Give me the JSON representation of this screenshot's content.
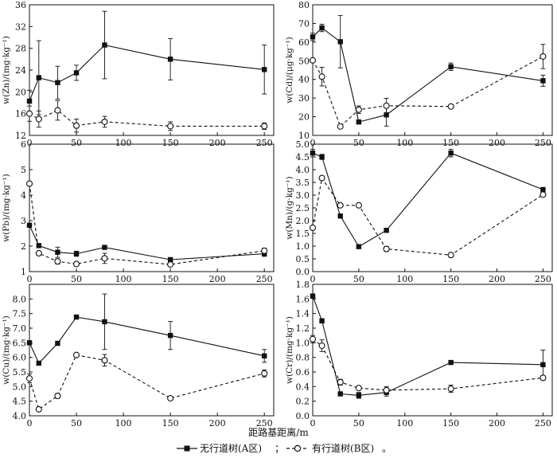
{
  "chart_data": [
    {
      "type": "line",
      "ylabel": "w(Zn)/(mg·kg⁻¹)",
      "ylim": [
        12,
        36
      ],
      "yticks": [
        12,
        16,
        20,
        24,
        28,
        32,
        36
      ],
      "xlim": [
        0,
        260
      ],
      "series": [
        {
          "name": "无行道树(A区)",
          "x": [
            0,
            10,
            30,
            50,
            80,
            150,
            250
          ],
          "values": [
            18.3,
            22.6,
            21.7,
            23.5,
            28.6,
            26.0,
            24.1
          ],
          "err": [
            2.0,
            6.8,
            3.0,
            1.4,
            6.2,
            3.8,
            4.5
          ]
        },
        {
          "name": "有行道树(B区)",
          "x": [
            0,
            10,
            30,
            50,
            80,
            150,
            250
          ],
          "values": [
            16.0,
            15.0,
            16.6,
            13.8,
            14.5,
            13.7,
            13.7
          ],
          "err": [
            1.4,
            1.5,
            1.8,
            1.2,
            1.0,
            0.8,
            0.6
          ]
        }
      ]
    },
    {
      "type": "line",
      "ylabel": "w(Cd)/(μg·kg⁻¹)",
      "ylim": [
        10,
        80
      ],
      "yticks": [
        10,
        20,
        30,
        40,
        50,
        60,
        70,
        80
      ],
      "xlim": [
        0,
        260
      ],
      "series": [
        {
          "name": "无行道树(A区)",
          "x": [
            0,
            10,
            30,
            50,
            80,
            150,
            250
          ],
          "values": [
            62.8,
            67.6,
            60.2,
            17.2,
            21.0,
            46.8,
            39.3
          ],
          "err": [
            2.0,
            2.0,
            14.0,
            0.8,
            6.0,
            2.0,
            3.0
          ]
        },
        {
          "name": "有行道树(B区)",
          "x": [
            0,
            10,
            30,
            50,
            80,
            150,
            250
          ],
          "values": [
            50.2,
            41.5,
            14.8,
            23.8,
            25.9,
            25.5,
            52.3
          ],
          "err": [
            1.0,
            5.0,
            0.8,
            2.0,
            4.0,
            1.0,
            6.5
          ]
        }
      ]
    },
    {
      "type": "line",
      "ylabel": "w(Pb)/(mg·kg⁻¹)",
      "ylim": [
        1,
        6
      ],
      "yticks": [
        1,
        2,
        3,
        4,
        5,
        6
      ],
      "xlim": [
        0,
        260
      ],
      "series": [
        {
          "name": "无行道树(A区)",
          "x": [
            0,
            10,
            30,
            50,
            80,
            150,
            250
          ],
          "values": [
            2.82,
            2.02,
            1.76,
            1.7,
            1.95,
            1.47,
            1.7
          ],
          "err": [
            0.05,
            0.05,
            0.2,
            0.1,
            0.05,
            0.05,
            0.1
          ]
        },
        {
          "name": "有行道树(B区)",
          "x": [
            0,
            10,
            30,
            50,
            80,
            150,
            250
          ],
          "values": [
            4.45,
            1.72,
            1.4,
            1.3,
            1.52,
            1.28,
            1.82
          ],
          "err": [
            0.05,
            0.05,
            0.1,
            0.05,
            0.2,
            0.05,
            0.1
          ]
        }
      ]
    },
    {
      "type": "line",
      "ylabel": "w(Mn)/(g·kg⁻¹)",
      "ylim": [
        0,
        5
      ],
      "yticks": [
        0,
        0.5,
        1.0,
        1.5,
        2.0,
        2.5,
        3.0,
        3.5,
        4.0,
        4.5,
        5.0
      ],
      "xlim": [
        0,
        260
      ],
      "series": [
        {
          "name": "无行道树(A区)",
          "x": [
            0,
            10,
            30,
            50,
            80,
            150,
            250
          ],
          "values": [
            4.65,
            4.5,
            2.18,
            0.98,
            1.62,
            4.65,
            3.22
          ],
          "err": [
            0.15,
            0.1,
            0.06,
            0.03,
            0.05,
            0.15,
            0.05
          ]
        },
        {
          "name": "有行道树(B区)",
          "x": [
            0,
            10,
            30,
            50,
            80,
            150,
            250
          ],
          "values": [
            1.72,
            3.67,
            2.6,
            2.6,
            0.89,
            0.65,
            3.02
          ],
          "err": [
            0.06,
            0.08,
            0.04,
            0.04,
            0.1,
            0.04,
            0.05
          ]
        }
      ]
    },
    {
      "type": "line",
      "ylabel": "w(Cu)/(mg·kg⁻¹)",
      "ylim": [
        4.0,
        8.5
      ],
      "yticks": [
        4.0,
        4.5,
        5.0,
        5.5,
        6.0,
        6.5,
        7.0,
        7.5,
        8.0
      ],
      "xlim": [
        0,
        260
      ],
      "series": [
        {
          "name": "无行道树(A区)",
          "x": [
            0,
            10,
            30,
            50,
            80,
            150,
            250
          ],
          "values": [
            6.5,
            5.8,
            6.48,
            7.38,
            7.22,
            6.75,
            6.05
          ],
          "err": [
            0.05,
            0.05,
            0.06,
            0.05,
            0.95,
            0.48,
            0.22
          ]
        },
        {
          "name": "有行道树(B区)",
          "x": [
            0,
            10,
            30,
            50,
            80,
            150,
            250
          ],
          "values": [
            5.28,
            4.22,
            4.68,
            6.08,
            5.9,
            4.6,
            5.45
          ],
          "err": [
            0.15,
            0.06,
            0.08,
            0.06,
            0.2,
            0.06,
            0.12
          ]
        }
      ]
    },
    {
      "type": "line",
      "ylabel": "w(Cr)/(mg·kg⁻¹)",
      "ylim": [
        0,
        1.8
      ],
      "yticks": [
        0,
        0.2,
        0.4,
        0.6,
        0.8,
        1.0,
        1.2,
        1.4,
        1.6,
        1.8
      ],
      "xlim": [
        0,
        260
      ],
      "series": [
        {
          "name": "无行道树(A区)",
          "x": [
            0,
            10,
            30,
            50,
            80,
            150,
            250
          ],
          "values": [
            1.64,
            1.3,
            0.3,
            0.28,
            0.32,
            0.73,
            0.7
          ],
          "err": [
            0.03,
            0.03,
            0.02,
            0.04,
            0.05,
            0.02,
            0.2
          ]
        },
        {
          "name": "有行道树(B区)",
          "x": [
            0,
            10,
            30,
            50,
            80,
            150,
            250
          ],
          "values": [
            1.05,
            0.96,
            0.46,
            0.38,
            0.35,
            0.37,
            0.52
          ],
          "err": [
            0.05,
            0.08,
            0.04,
            0.02,
            0.05,
            0.05,
            0.03
          ]
        }
      ]
    }
  ],
  "xticks": [
    0,
    50,
    100,
    150,
    200,
    250
  ],
  "xlabel": "距路基距离/m",
  "legend": {
    "series_a": "无行道树(A区)",
    "separator": "；",
    "series_b": "有行道树(B区)",
    "end": "。"
  }
}
